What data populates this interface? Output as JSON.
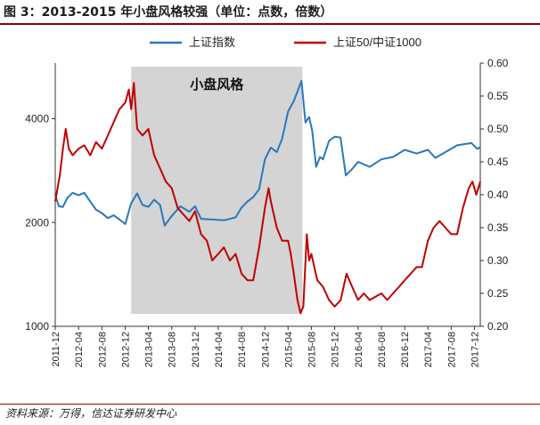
{
  "figure": {
    "title": "图 3：2013-2015 年小盘风格较强（单位：点数，倍数）",
    "source": "资料来源：万得，信达证券研发中心"
  },
  "chart_data": {
    "type": "line",
    "x_type": "date",
    "x_tick_labels": [
      "2011-12",
      "2012-04",
      "2012-08",
      "2012-12",
      "2013-04",
      "2013-08",
      "2013-12",
      "2014-04",
      "2014-08",
      "2014-12",
      "2015-04",
      "2015-08",
      "2015-12",
      "2016-04",
      "2016-08",
      "2016-12",
      "2017-04",
      "2017-08",
      "2017-12"
    ],
    "x_range": [
      "2011-12-01",
      "2017-12-31"
    ],
    "y_left": {
      "scale": "log",
      "min": 1000,
      "max": 5800,
      "ticks": [
        1000,
        2000,
        4000
      ]
    },
    "y_right": {
      "min": 0.2,
      "max": 0.6,
      "ticks": [
        "0.20",
        "0.25",
        "0.30",
        "0.35",
        "0.40",
        "0.45",
        "0.50",
        "0.55",
        "0.60"
      ]
    },
    "legend_position": "top",
    "grid": false,
    "shaded_regions": [
      {
        "start": "2013-01-01",
        "end": "2015-06-15",
        "label": "小盘风格",
        "color": "#d4d4d4"
      }
    ],
    "series": [
      {
        "name": "上证指数",
        "axis": "left",
        "color": "#2878bd",
        "points": [
          [
            "2011-12-01",
            2400
          ],
          [
            "2011-12-20",
            2230
          ],
          [
            "2012-01-10",
            2220
          ],
          [
            "2012-02-01",
            2350
          ],
          [
            "2012-03-01",
            2440
          ],
          [
            "2012-04-01",
            2400
          ],
          [
            "2012-05-01",
            2440
          ],
          [
            "2012-06-01",
            2300
          ],
          [
            "2012-07-01",
            2180
          ],
          [
            "2012-08-01",
            2130
          ],
          [
            "2012-09-01",
            2060
          ],
          [
            "2012-10-01",
            2100
          ],
          [
            "2012-11-01",
            2040
          ],
          [
            "2012-12-01",
            1980
          ],
          [
            "2012-12-31",
            2270
          ],
          [
            "2013-02-01",
            2430
          ],
          [
            "2013-03-01",
            2250
          ],
          [
            "2013-04-01",
            2220
          ],
          [
            "2013-05-01",
            2330
          ],
          [
            "2013-06-01",
            2250
          ],
          [
            "2013-06-25",
            1960
          ],
          [
            "2013-08-01",
            2090
          ],
          [
            "2013-09-15",
            2230
          ],
          [
            "2013-11-01",
            2150
          ],
          [
            "2013-12-01",
            2230
          ],
          [
            "2014-01-01",
            2050
          ],
          [
            "2014-03-01",
            2040
          ],
          [
            "2014-05-01",
            2030
          ],
          [
            "2014-07-01",
            2070
          ],
          [
            "2014-08-01",
            2210
          ],
          [
            "2014-09-01",
            2300
          ],
          [
            "2014-10-01",
            2370
          ],
          [
            "2014-11-01",
            2500
          ],
          [
            "2014-12-01",
            3050
          ],
          [
            "2015-01-01",
            3300
          ],
          [
            "2015-02-01",
            3200
          ],
          [
            "2015-03-01",
            3500
          ],
          [
            "2015-04-01",
            4200
          ],
          [
            "2015-05-01",
            4500
          ],
          [
            "2015-06-10",
            5150
          ],
          [
            "2015-07-01",
            3900
          ],
          [
            "2015-07-20",
            4050
          ],
          [
            "2015-08-05",
            3700
          ],
          [
            "2015-08-26",
            2900
          ],
          [
            "2015-09-15",
            3100
          ],
          [
            "2015-10-01",
            3050
          ],
          [
            "2015-11-01",
            3450
          ],
          [
            "2015-12-01",
            3550
          ],
          [
            "2015-12-31",
            3530
          ],
          [
            "2016-01-28",
            2740
          ],
          [
            "2016-03-01",
            2860
          ],
          [
            "2016-04-01",
            3000
          ],
          [
            "2016-06-01",
            2900
          ],
          [
            "2016-08-01",
            3050
          ],
          [
            "2016-10-01",
            3100
          ],
          [
            "2016-12-01",
            3250
          ],
          [
            "2017-02-01",
            3170
          ],
          [
            "2017-04-01",
            3250
          ],
          [
            "2017-05-10",
            3080
          ],
          [
            "2017-07-01",
            3200
          ],
          [
            "2017-09-01",
            3350
          ],
          [
            "2017-11-15",
            3400
          ],
          [
            "2017-12-15",
            3270
          ],
          [
            "2017-12-31",
            3310
          ]
        ]
      },
      {
        "name": "上证50/中证1000",
        "axis": "right",
        "color": "#c00000",
        "points": [
          [
            "2011-12-01",
            0.39
          ],
          [
            "2011-12-25",
            0.43
          ],
          [
            "2012-01-10",
            0.47
          ],
          [
            "2012-01-25",
            0.5
          ],
          [
            "2012-02-10",
            0.47
          ],
          [
            "2012-03-01",
            0.46
          ],
          [
            "2012-04-01",
            0.47
          ],
          [
            "2012-05-01",
            0.475
          ],
          [
            "2012-06-01",
            0.46
          ],
          [
            "2012-07-01",
            0.48
          ],
          [
            "2012-08-01",
            0.47
          ],
          [
            "2012-09-01",
            0.49
          ],
          [
            "2012-10-01",
            0.51
          ],
          [
            "2012-11-01",
            0.53
          ],
          [
            "2012-12-01",
            0.54
          ],
          [
            "2012-12-20",
            0.56
          ],
          [
            "2013-01-01",
            0.53
          ],
          [
            "2013-01-15",
            0.57
          ],
          [
            "2013-02-01",
            0.5
          ],
          [
            "2013-03-01",
            0.49
          ],
          [
            "2013-04-01",
            0.5
          ],
          [
            "2013-05-01",
            0.46
          ],
          [
            "2013-06-01",
            0.44
          ],
          [
            "2013-07-01",
            0.42
          ],
          [
            "2013-08-01",
            0.41
          ],
          [
            "2013-09-01",
            0.38
          ],
          [
            "2013-10-01",
            0.37
          ],
          [
            "2013-11-01",
            0.36
          ],
          [
            "2013-12-01",
            0.375
          ],
          [
            "2014-01-01",
            0.34
          ],
          [
            "2014-02-01",
            0.33
          ],
          [
            "2014-03-01",
            0.3
          ],
          [
            "2014-04-01",
            0.31
          ],
          [
            "2014-05-01",
            0.32
          ],
          [
            "2014-06-01",
            0.3
          ],
          [
            "2014-07-01",
            0.31
          ],
          [
            "2014-08-01",
            0.28
          ],
          [
            "2014-09-01",
            0.27
          ],
          [
            "2014-10-01",
            0.27
          ],
          [
            "2014-11-01",
            0.32
          ],
          [
            "2014-12-01",
            0.38
          ],
          [
            "2014-12-20",
            0.41
          ],
          [
            "2015-01-01",
            0.39
          ],
          [
            "2015-02-01",
            0.35
          ],
          [
            "2015-03-01",
            0.33
          ],
          [
            "2015-04-01",
            0.33
          ],
          [
            "2015-04-15",
            0.31
          ],
          [
            "2015-05-01",
            0.28
          ],
          [
            "2015-05-20",
            0.24
          ],
          [
            "2015-06-05",
            0.22
          ],
          [
            "2015-06-20",
            0.23
          ],
          [
            "2015-07-08",
            0.34
          ],
          [
            "2015-07-20",
            0.3
          ],
          [
            "2015-08-01",
            0.31
          ],
          [
            "2015-09-01",
            0.27
          ],
          [
            "2015-10-01",
            0.26
          ],
          [
            "2015-11-01",
            0.24
          ],
          [
            "2015-12-01",
            0.23
          ],
          [
            "2016-01-01",
            0.24
          ],
          [
            "2016-02-01",
            0.28
          ],
          [
            "2016-03-01",
            0.26
          ],
          [
            "2016-04-01",
            0.24
          ],
          [
            "2016-05-01",
            0.25
          ],
          [
            "2016-06-01",
            0.24
          ],
          [
            "2016-08-01",
            0.25
          ],
          [
            "2016-09-01",
            0.24
          ],
          [
            "2016-10-01",
            0.25
          ],
          [
            "2016-11-01",
            0.26
          ],
          [
            "2016-12-01",
            0.27
          ],
          [
            "2017-01-01",
            0.28
          ],
          [
            "2017-02-01",
            0.29
          ],
          [
            "2017-03-01",
            0.29
          ],
          [
            "2017-04-01",
            0.33
          ],
          [
            "2017-05-01",
            0.35
          ],
          [
            "2017-06-01",
            0.36
          ],
          [
            "2017-07-01",
            0.35
          ],
          [
            "2017-08-01",
            0.34
          ],
          [
            "2017-09-01",
            0.34
          ],
          [
            "2017-10-01",
            0.38
          ],
          [
            "2017-11-01",
            0.41
          ],
          [
            "2017-11-20",
            0.42
          ],
          [
            "2017-12-10",
            0.4
          ],
          [
            "2017-12-31",
            0.42
          ]
        ]
      }
    ]
  }
}
